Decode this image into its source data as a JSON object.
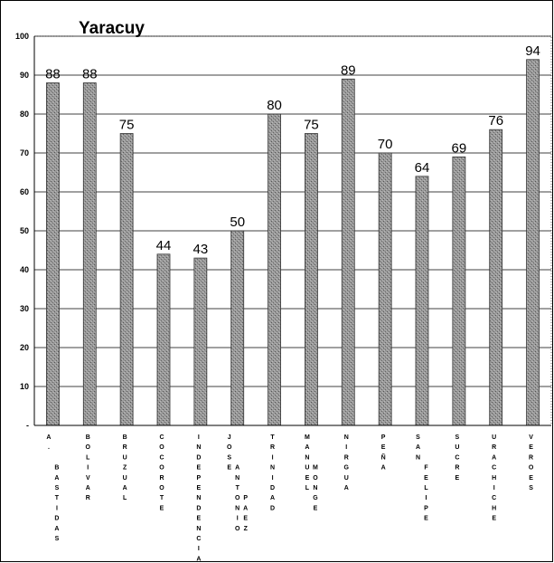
{
  "chart_data": {
    "type": "bar",
    "title": "Yaracuy",
    "xlabel": "",
    "ylabel": "",
    "ylim": [
      0,
      100
    ],
    "yticks": [
      "-",
      "10",
      "20",
      "30",
      "40",
      "50",
      "60",
      "70",
      "80",
      "90",
      "100"
    ],
    "grid": true,
    "legend": "none",
    "bar_color": "#8c8c8c",
    "categories": [
      "A. BASTIDAS",
      "BOLIVAR",
      "BRUZUAL",
      "COCOROTE",
      "INDEPENDENCIA",
      "JOSE ANTONIO PAEZ",
      "TRINIDAD",
      "MANUEL MONGE",
      "NIRGUA",
      "PEÑA",
      "SAN FELIPE",
      "SUCRE",
      "URACHICHE",
      "VEROES"
    ],
    "values": [
      88,
      88,
      75,
      44,
      43,
      50,
      80,
      75,
      89,
      70,
      64,
      69,
      76,
      94
    ]
  }
}
